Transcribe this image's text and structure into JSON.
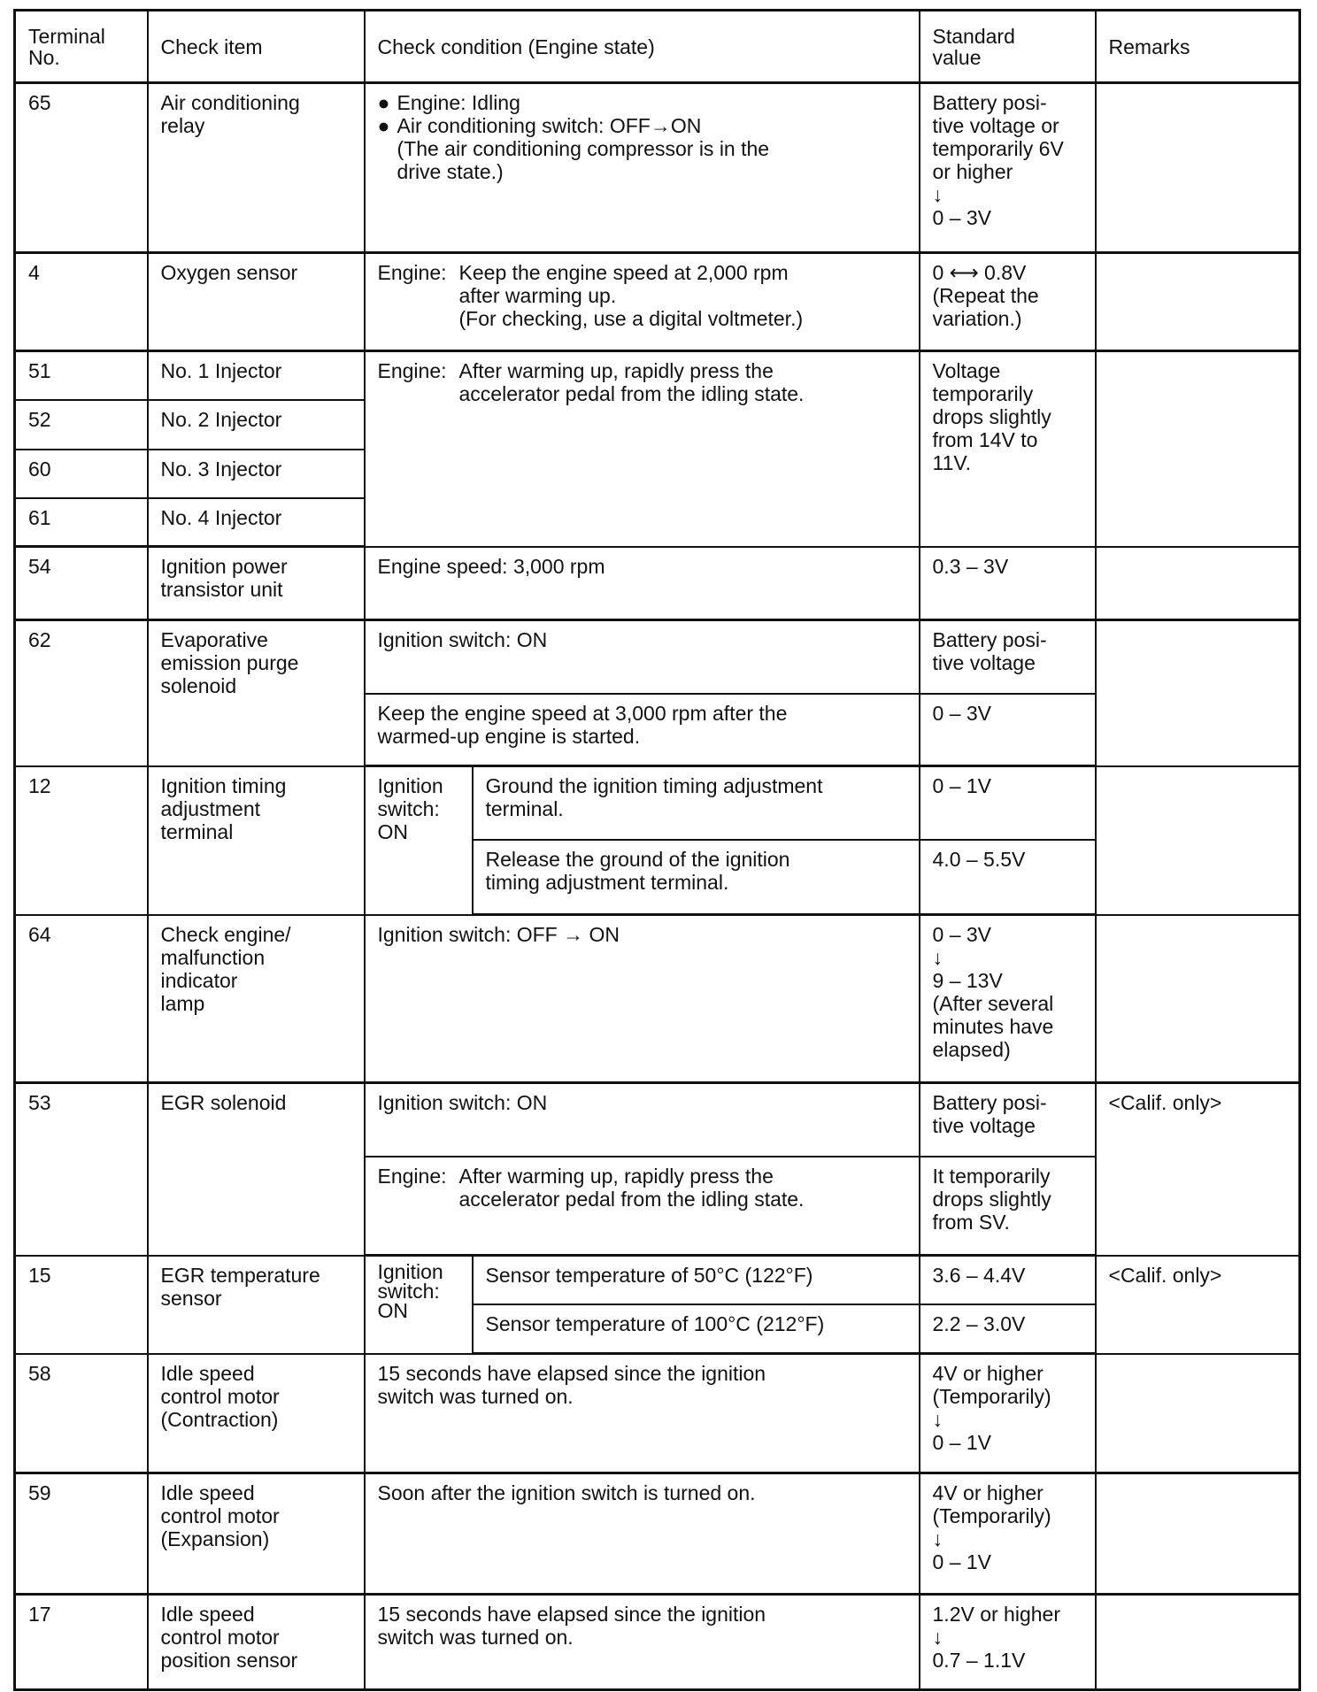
{
  "headers": {
    "terminal": "Terminal\nNo.",
    "item": "Check item",
    "condition": "Check condition (Engine state)",
    "standard": "Standard\nvalue",
    "remarks": "Remarks"
  },
  "rows": {
    "r65": {
      "no": "65",
      "item": "Air conditioning\nrelay",
      "cond_b1": "Engine: Idling",
      "cond_b2": "Air conditioning switch:  OFF→ON\n(The air conditioning compressor is in the\ndrive state.)",
      "std": "Battery posi-\ntive voltage or\ntemporarily 6V\nor higher\n ↓\n0 – 3V"
    },
    "r4": {
      "no": "4",
      "item": "Oxygen sensor",
      "cond_k": "Engine:",
      "cond_v": "Keep the engine speed at 2,000 rpm\nafter warming up.\n(For checking, use a digital voltmeter.)",
      "std": "0 ⟷ 0.8V\n(Repeat the\nvariation.)"
    },
    "r51": {
      "no": "51",
      "item": "No. 1 Injector",
      "cond_k": "Engine:",
      "cond_v": "After warming up, rapidly press the\naccelerator pedal from the idling state.",
      "std": "Voltage\ntemporarily\ndrops slightly\nfrom 14V to\n11V."
    },
    "r52": {
      "no": "52",
      "item": "No. 2 Injector"
    },
    "r60": {
      "no": "60",
      "item": "No. 3 Injector"
    },
    "r61": {
      "no": "61",
      "item": "No. 4 Injector"
    },
    "r54": {
      "no": "54",
      "item": "Ignition power\ntransistor unit",
      "cond": "Engine speed: 3,000 rpm",
      "std": "0.3 – 3V"
    },
    "r62": {
      "no": "62",
      "item": "Evaporative\nemission purge\nsolenoid",
      "cond1": "Ignition switch: ON",
      "std1": "Battery posi-\ntive voltage",
      "cond2": "Keep the engine speed at 3,000 rpm after the\nwarmed-up engine is started.",
      "std2": "0 – 3V"
    },
    "r12": {
      "no": "12",
      "item": "Ignition timing\nadjustment\nterminal",
      "cond_main": "Ignition\nswitch:\nON",
      "cond1": "Ground the ignition timing adjustment\nterminal.",
      "std1": "0 – 1V",
      "cond2": "Release the ground of the ignition\ntiming adjustment terminal.",
      "std2": "4.0 – 5.5V"
    },
    "r64": {
      "no": "64",
      "item": "Check engine/\nmalfunction\nindicator\nlamp",
      "cond": "Ignition switch: OFF → ON",
      "std": "0 – 3V\n ↓\n9 – 13V\n(After several\nminutes have\nelapsed)"
    },
    "r53": {
      "no": "53",
      "item": "EGR solenoid",
      "cond1": "Ignition switch: ON",
      "std1": "Battery posi-\ntive voltage",
      "cond2_k": "Engine:",
      "cond2_v": "After warming up, rapidly press the\naccelerator pedal from the idling state.",
      "std2": "It temporarily\ndrops slightly\nfrom SV.",
      "remarks": "<Calif. only>"
    },
    "r15": {
      "no": "15",
      "item": "EGR temperature\nsensor",
      "cond_main": "Ignition\nswitch:\nON",
      "cond1": "Sensor temperature of 50°C (122°F)",
      "std1": "3.6 – 4.4V",
      "cond2": "Sensor temperature of 100°C (212°F)",
      "std2": "2.2 – 3.0V",
      "remarks": "<Calif. only>"
    },
    "r58": {
      "no": "58",
      "item": "Idle speed\ncontrol motor\n(Contraction)",
      "cond": "15 seconds have elapsed since the ignition\nswitch was turned on.",
      "std": "4V or higher\n(Temporarily)\n ↓\n0 – 1V"
    },
    "r59": {
      "no": "59",
      "item": "Idle speed\ncontrol motor\n(Expansion)",
      "cond": "Soon after the ignition switch is turned on.",
      "std": "4V or higher\n(Temporarily)\n ↓\n0 – 1V"
    },
    "r17": {
      "no": "17",
      "item": "Idle speed\ncontrol motor\nposition sensor",
      "cond": "15 seconds have elapsed since the ignition\nswitch was turned on.",
      "std": "1.2V or higher\n ↓\n0.7 – 1.1V"
    }
  }
}
